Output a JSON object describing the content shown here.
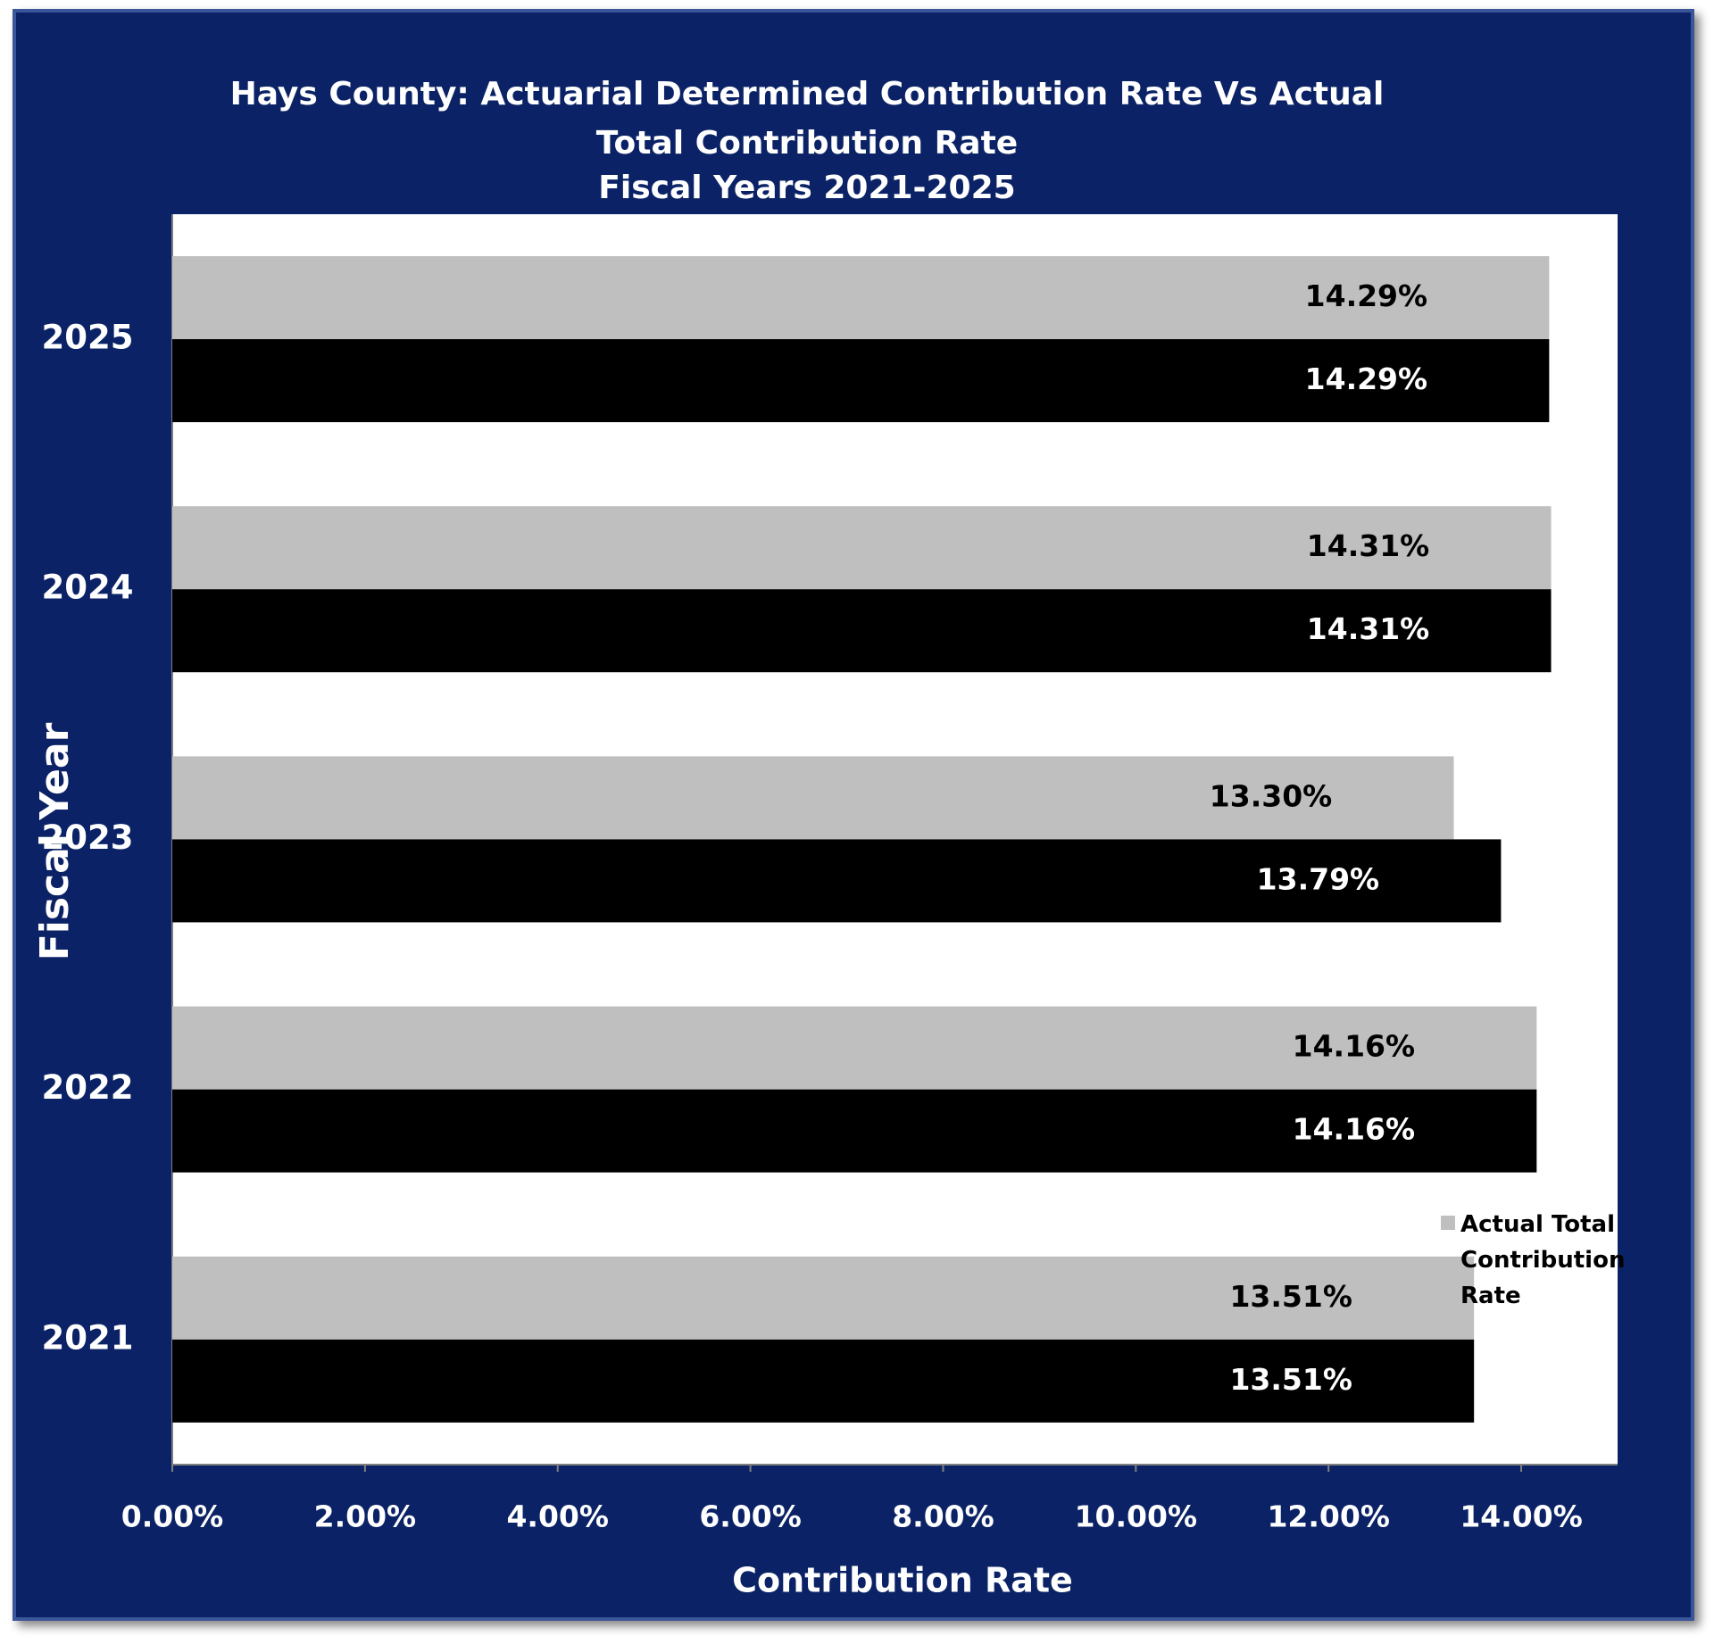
{
  "chart_data": {
    "type": "bar",
    "orientation": "horizontal",
    "title": "Hays County: Actuarial Determined Contribution Rate Vs Actual Total Contribution Rate",
    "subtitle": "Fiscal Years 2021-2025",
    "x_label": "Contribution Rate",
    "y_label": "Fiscal Year",
    "categories": [
      "2025",
      "2024",
      "2023",
      "2022",
      "2021"
    ],
    "series": [
      {
        "name": "Actual Total Contribution Rate",
        "color": "#bfbfbf",
        "label_color": "#000000",
        "values": [
          14.29,
          14.31,
          13.3,
          14.16,
          13.51
        ],
        "value_labels": [
          "14.29%",
          "14.31%",
          "13.30%",
          "14.16%",
          "13.51%"
        ]
      },
      {
        "color": "#000000",
        "label_color": "#ffffff",
        "values": [
          14.29,
          14.31,
          13.79,
          14.16,
          13.51
        ],
        "value_labels": [
          "14.29%",
          "14.31%",
          "13.79%",
          "14.16%",
          "13.51%"
        ]
      }
    ],
    "xlim": [
      0,
      15
    ],
    "xticks": [
      {
        "value": 0,
        "label": "0.00%"
      },
      {
        "value": 2,
        "label": "2.00%"
      },
      {
        "value": 4,
        "label": "4.00%"
      },
      {
        "value": 6,
        "label": "6.00%"
      },
      {
        "value": 8,
        "label": "8.00%"
      },
      {
        "value": 10,
        "label": "10.00%"
      },
      {
        "value": 12,
        "label": "12.00%"
      },
      {
        "value": 14,
        "label": "14.00%"
      }
    ],
    "legend": "right",
    "grid": false
  }
}
